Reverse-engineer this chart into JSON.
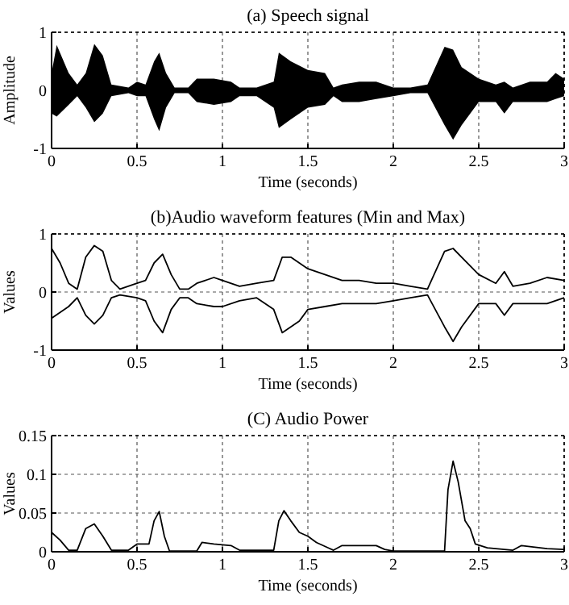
{
  "chart_data": [
    {
      "type": "line",
      "title": "(a) Speech signal",
      "xlabel": "Time (seconds)",
      "ylabel": "Amplitude",
      "xlim": [
        0,
        3
      ],
      "xticks": [
        0,
        0.5,
        1,
        1.5,
        2,
        2.5,
        3
      ],
      "ylim": [
        -1,
        1
      ],
      "yticks": [
        -1,
        0,
        1
      ],
      "grid": true,
      "x": [
        0,
        0.03,
        0.1,
        0.15,
        0.2,
        0.25,
        0.3,
        0.35,
        0.45,
        0.5,
        0.55,
        0.6,
        0.63,
        0.67,
        0.72,
        0.8,
        0.85,
        0.95,
        1.05,
        1.1,
        1.2,
        1.3,
        1.33,
        1.4,
        1.5,
        1.6,
        1.65,
        1.7,
        1.8,
        1.9,
        2,
        2.1,
        2.2,
        2.3,
        2.35,
        2.4,
        2.5,
        2.6,
        2.65,
        2.7,
        2.8,
        2.9,
        2.95,
        3
      ],
      "series": [
        {
          "color": "#000000",
          "values": [
            0,
            0,
            0,
            0,
            0,
            0,
            0,
            0,
            0,
            0,
            0,
            0,
            0,
            0,
            0,
            0,
            0,
            0,
            0,
            0,
            0,
            0,
            0,
            0,
            0,
            0,
            0,
            0,
            0,
            0,
            0,
            0,
            0,
            0,
            0,
            0,
            0,
            0,
            0,
            0,
            0,
            0,
            0,
            0
          ],
          "upper": [
            0.3,
            0.78,
            0.3,
            0.1,
            0.3,
            0.8,
            0.6,
            0.1,
            0.05,
            0.15,
            0.1,
            0.5,
            0.65,
            0.3,
            0.05,
            0.05,
            0.2,
            0.2,
            0.15,
            0.05,
            0.05,
            0.15,
            0.65,
            0.5,
            0.35,
            0.3,
            0.05,
            0.1,
            0.15,
            0.15,
            0.05,
            0.05,
            0.1,
            0.75,
            0.7,
            0.4,
            0.2,
            0.1,
            0.15,
            0.05,
            0.15,
            0.15,
            0.3,
            0.2
          ],
          "lower": [
            -0.4,
            -0.45,
            -0.25,
            -0.1,
            -0.3,
            -0.55,
            -0.4,
            -0.1,
            -0.05,
            -0.1,
            -0.1,
            -0.5,
            -0.7,
            -0.3,
            -0.05,
            -0.05,
            -0.2,
            -0.25,
            -0.2,
            -0.1,
            -0.1,
            -0.3,
            -0.65,
            -0.5,
            -0.3,
            -0.25,
            -0.1,
            -0.2,
            -0.2,
            -0.15,
            -0.1,
            -0.05,
            -0.05,
            -0.6,
            -0.85,
            -0.6,
            -0.2,
            -0.2,
            -0.4,
            -0.2,
            -0.2,
            -0.2,
            -0.15,
            -0.1
          ]
        }
      ]
    },
    {
      "type": "line",
      "title": "(b)Audio waveform features (Min and Max)",
      "xlabel": "Time (seconds)",
      "ylabel": "Values",
      "xlim": [
        0,
        3
      ],
      "xticks": [
        0,
        0.5,
        1,
        1.5,
        2,
        2.5,
        3
      ],
      "ylim": [
        -1,
        1
      ],
      "yticks": [
        -1,
        0,
        1
      ],
      "grid": true,
      "x": [
        0,
        0.05,
        0.1,
        0.15,
        0.2,
        0.25,
        0.3,
        0.35,
        0.4,
        0.5,
        0.55,
        0.6,
        0.65,
        0.7,
        0.75,
        0.8,
        0.85,
        0.95,
        1,
        1.1,
        1.2,
        1.3,
        1.35,
        1.4,
        1.45,
        1.5,
        1.6,
        1.7,
        1.8,
        1.9,
        2,
        2.1,
        2.2,
        2.3,
        2.35,
        2.4,
        2.5,
        2.6,
        2.65,
        2.7,
        2.8,
        2.9,
        3
      ],
      "series": [
        {
          "color": "#000000",
          "values": [
            0.75,
            0.5,
            0.15,
            0.05,
            0.6,
            0.8,
            0.7,
            0.2,
            0.05,
            0.15,
            0.2,
            0.5,
            0.65,
            0.3,
            0.05,
            0.05,
            0.15,
            0.25,
            0.2,
            0.1,
            0.15,
            0.2,
            0.6,
            0.6,
            0.5,
            0.4,
            0.3,
            0.2,
            0.2,
            0.15,
            0.15,
            0.1,
            0.05,
            0.7,
            0.75,
            0.6,
            0.3,
            0.15,
            0.35,
            0.1,
            0.15,
            0.25,
            0.2
          ]
        },
        {
          "color": "#000000",
          "values": [
            -0.45,
            -0.35,
            -0.25,
            -0.1,
            -0.4,
            -0.55,
            -0.4,
            -0.1,
            -0.05,
            -0.1,
            -0.15,
            -0.5,
            -0.7,
            -0.3,
            -0.1,
            -0.1,
            -0.2,
            -0.25,
            -0.25,
            -0.15,
            -0.1,
            -0.3,
            -0.7,
            -0.6,
            -0.5,
            -0.3,
            -0.25,
            -0.2,
            -0.2,
            -0.2,
            -0.15,
            -0.1,
            -0.05,
            -0.6,
            -0.85,
            -0.6,
            -0.2,
            -0.2,
            -0.4,
            -0.2,
            -0.2,
            -0.2,
            -0.1
          ]
        }
      ]
    },
    {
      "type": "line",
      "title": "(C) Audio Power",
      "xlabel": "Time (seconds)",
      "ylabel": "Values",
      "xlim": [
        0,
        3
      ],
      "xticks": [
        0,
        0.5,
        1,
        1.5,
        2,
        2.5,
        3
      ],
      "ylim": [
        0,
        0.15
      ],
      "yticks": [
        0,
        0.05,
        0.1,
        0.15
      ],
      "grid": true,
      "x": [
        0,
        0.05,
        0.1,
        0.15,
        0.2,
        0.25,
        0.3,
        0.35,
        0.45,
        0.5,
        0.57,
        0.6,
        0.63,
        0.66,
        0.69,
        0.85,
        0.88,
        0.95,
        1.05,
        1.1,
        1.3,
        1.33,
        1.36,
        1.4,
        1.45,
        1.5,
        1.55,
        1.62,
        1.65,
        1.7,
        1.8,
        1.9,
        1.95,
        2,
        2.3,
        2.32,
        2.35,
        2.38,
        2.42,
        2.45,
        2.48,
        2.55,
        2.7,
        2.75,
        2.9,
        3
      ],
      "series": [
        {
          "color": "#000000",
          "values": [
            0.025,
            0.015,
            0.002,
            0.002,
            0.03,
            0.036,
            0.02,
            0.002,
            0.002,
            0.01,
            0.01,
            0.04,
            0.052,
            0.02,
            0.001,
            0.001,
            0.012,
            0.01,
            0.008,
            0.002,
            0.002,
            0.04,
            0.053,
            0.04,
            0.025,
            0.02,
            0.012,
            0.005,
            0.002,
            0.008,
            0.008,
            0.008,
            0.003,
            0.001,
            0.001,
            0.08,
            0.117,
            0.09,
            0.04,
            0.03,
            0.01,
            0.005,
            0.002,
            0.008,
            0.004,
            0.003
          ]
        }
      ]
    }
  ]
}
